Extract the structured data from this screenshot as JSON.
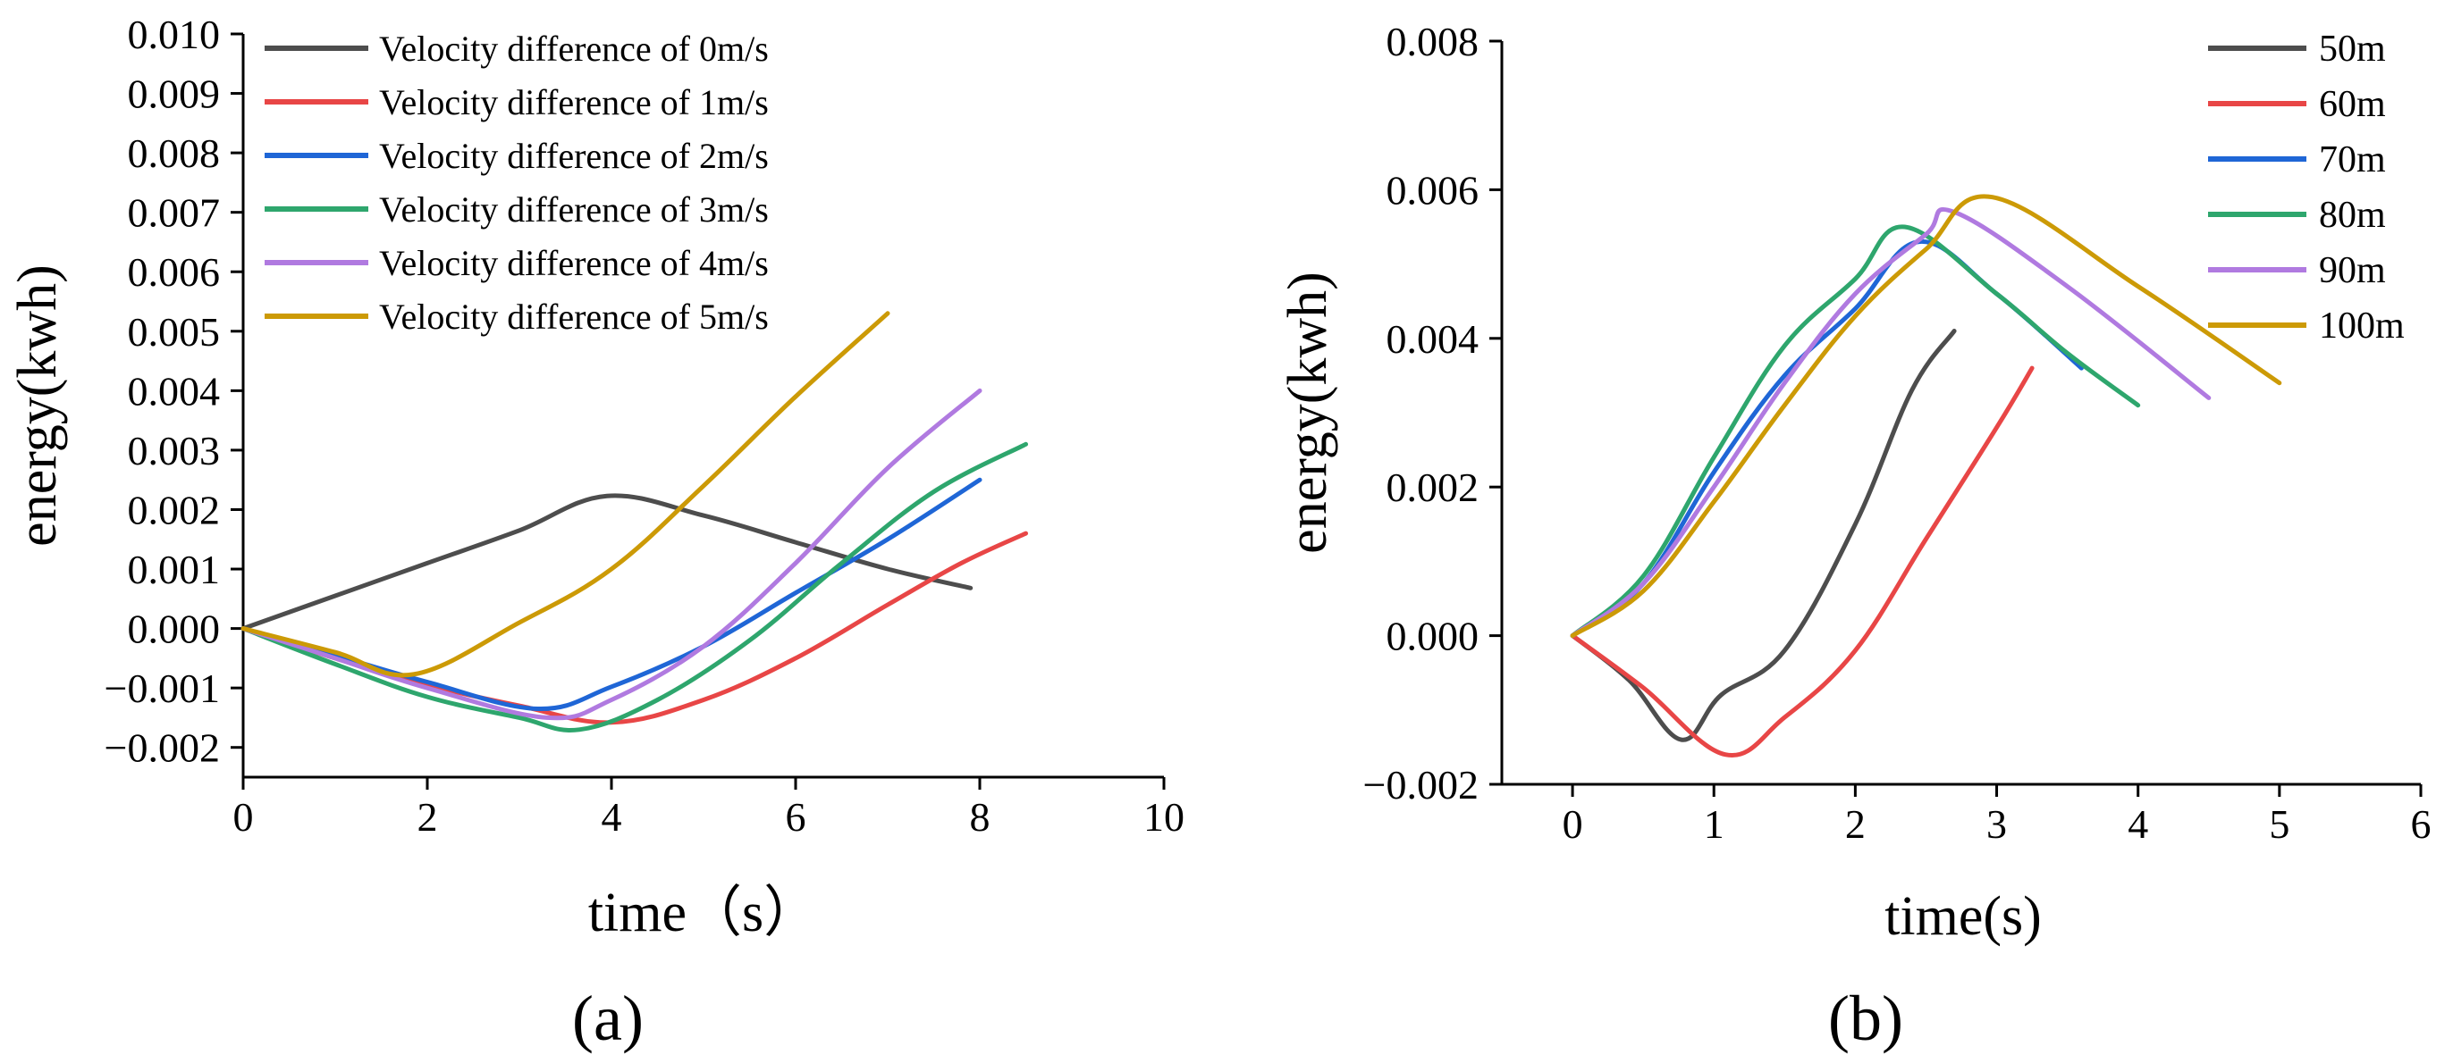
{
  "chart_data": [
    {
      "type": "line",
      "panel_label": "(a)",
      "xlabel": "time（s）",
      "ylabel": "energy(kwh)",
      "xlim": [
        0,
        10
      ],
      "ylim": [
        -0.0025,
        0.01
      ],
      "xticks": [
        0,
        2,
        4,
        6,
        8,
        10
      ],
      "xtick_labels": [
        "0",
        "2",
        "4",
        "6",
        "8",
        "10"
      ],
      "yticks": [
        -0.002,
        -0.001,
        0.0,
        0.001,
        0.002,
        0.003,
        0.004,
        0.005,
        0.006,
        0.007,
        0.008,
        0.009,
        0.01
      ],
      "ytick_labels": [
        "−0.002",
        "−0.001",
        "0.000",
        "0.001",
        "0.002",
        "0.003",
        "0.004",
        "0.005",
        "0.006",
        "0.007",
        "0.008",
        "0.009",
        "0.010"
      ],
      "legend_position": "top-left",
      "series": [
        {
          "name": "Velocity difference of 0m/s",
          "color": "#4d4d4d",
          "points": [
            [
              0,
              0
            ],
            [
              1,
              0.00055
            ],
            [
              2,
              0.0011
            ],
            [
              3,
              0.00165
            ],
            [
              3.95,
              0.00223
            ],
            [
              5,
              0.0019
            ],
            [
              6,
              0.00145
            ],
            [
              7,
              0.001
            ],
            [
              7.9,
              0.00068
            ]
          ]
        },
        {
          "name": "Velocity difference of 1m/s",
          "color": "#e84646",
          "points": [
            [
              0,
              0
            ],
            [
              1,
              -0.0005
            ],
            [
              2,
              -0.00095
            ],
            [
              3,
              -0.0013
            ],
            [
              4,
              -0.00158
            ],
            [
              5,
              -0.0012
            ],
            [
              6,
              -0.0005
            ],
            [
              7,
              0.0004
            ],
            [
              7.8,
              0.0011
            ],
            [
              8.5,
              0.0016
            ]
          ]
        },
        {
          "name": "Velocity difference of 2m/s",
          "color": "#1f66d6",
          "points": [
            [
              0,
              0
            ],
            [
              1,
              -0.00045
            ],
            [
              2,
              -0.0009
            ],
            [
              3.2,
              -0.00135
            ],
            [
              4,
              -0.00098
            ],
            [
              5,
              -0.0003
            ],
            [
              6,
              0.0006
            ],
            [
              7,
              0.0015
            ],
            [
              8,
              0.0025
            ]
          ]
        },
        {
          "name": "Velocity difference of 3m/s",
          "color": "#2ea66d",
          "points": [
            [
              0,
              0
            ],
            [
              1,
              -0.0006
            ],
            [
              2,
              -0.00115
            ],
            [
              3,
              -0.0015
            ],
            [
              3.65,
              -0.0017
            ],
            [
              4.5,
              -0.0012
            ],
            [
              5.5,
              -0.0002
            ],
            [
              6.5,
              0.0011
            ],
            [
              7.5,
              0.0023
            ],
            [
              8.5,
              0.0031
            ]
          ]
        },
        {
          "name": "Velocity difference of 4m/s",
          "color": "#b07ae0",
          "points": [
            [
              0,
              0
            ],
            [
              1,
              -0.0005
            ],
            [
              2,
              -0.001
            ],
            [
              3.3,
              -0.0015
            ],
            [
              4,
              -0.0012
            ],
            [
              5,
              -0.0003
            ],
            [
              6,
              0.0011
            ],
            [
              7,
              0.0027
            ],
            [
              8,
              0.004
            ]
          ]
        },
        {
          "name": "Velocity difference of 5m/s",
          "color": "#cc9a06",
          "points": [
            [
              0,
              0
            ],
            [
              1,
              -0.0004
            ],
            [
              1.85,
              -0.00077
            ],
            [
              3,
              0.0001
            ],
            [
              4,
              0.001
            ],
            [
              5,
              0.0024
            ],
            [
              6,
              0.0039
            ],
            [
              7,
              0.0053
            ]
          ]
        }
      ]
    },
    {
      "type": "line",
      "panel_label": "(b)",
      "xlabel": "time(s)",
      "ylabel": "energy(kwh)",
      "xlim": [
        -0.5,
        6
      ],
      "ylim": [
        -0.002,
        0.008
      ],
      "xticks": [
        0,
        1,
        2,
        3,
        4,
        5,
        6
      ],
      "xtick_labels": [
        "0",
        "1",
        "2",
        "3",
        "4",
        "5",
        "6"
      ],
      "yticks": [
        -0.002,
        0.0,
        0.002,
        0.004,
        0.006,
        0.008
      ],
      "ytick_labels": [
        "−0.002",
        "0.000",
        "0.002",
        "0.004",
        "0.006",
        "0.008"
      ],
      "legend_position": "top-right",
      "series": [
        {
          "name": "50m",
          "color": "#4d4d4d",
          "points": [
            [
              0,
              0
            ],
            [
              0.4,
              -0.0006
            ],
            [
              0.77,
              -0.0014
            ],
            [
              1.05,
              -0.0008
            ],
            [
              1.5,
              -0.0002
            ],
            [
              2,
              0.0015
            ],
            [
              2.4,
              0.0033
            ],
            [
              2.7,
              0.0041
            ]
          ]
        },
        {
          "name": "60m",
          "color": "#e84646",
          "points": [
            [
              0,
              0
            ],
            [
              0.5,
              -0.0007
            ],
            [
              1.08,
              -0.0016
            ],
            [
              1.5,
              -0.0011
            ],
            [
              2,
              -0.0002
            ],
            [
              2.5,
              0.0013
            ],
            [
              3,
              0.0028
            ],
            [
              3.25,
              0.0036
            ]
          ]
        },
        {
          "name": "70m",
          "color": "#1f66d6",
          "points": [
            [
              0,
              0
            ],
            [
              0.5,
              0.0007
            ],
            [
              1,
              0.0022
            ],
            [
              1.5,
              0.0035
            ],
            [
              2,
              0.0044
            ],
            [
              2.45,
              0.0053
            ],
            [
              3,
              0.0046
            ],
            [
              3.6,
              0.0036
            ]
          ]
        },
        {
          "name": "80m",
          "color": "#2ea66d",
          "points": [
            [
              0,
              0
            ],
            [
              0.5,
              0.0008
            ],
            [
              1,
              0.0024
            ],
            [
              1.5,
              0.0039
            ],
            [
              2,
              0.0048
            ],
            [
              2.35,
              0.0055
            ],
            [
              3,
              0.0046
            ],
            [
              3.5,
              0.0038
            ],
            [
              4,
              0.0031
            ]
          ]
        },
        {
          "name": "90m",
          "color": "#b07ae0",
          "points": [
            [
              0,
              0
            ],
            [
              0.5,
              0.0007
            ],
            [
              1,
              0.002
            ],
            [
              1.5,
              0.0034
            ],
            [
              2,
              0.0046
            ],
            [
              2.5,
              0.0054
            ],
            [
              2.7,
              0.0057
            ],
            [
              3.5,
              0.0047
            ],
            [
              4.5,
              0.0032
            ]
          ]
        },
        {
          "name": "100m",
          "color": "#cc9a06",
          "points": [
            [
              0,
              0
            ],
            [
              0.5,
              0.0006
            ],
            [
              1,
              0.0018
            ],
            [
              1.5,
              0.0031
            ],
            [
              2,
              0.0043
            ],
            [
              2.5,
              0.0052
            ],
            [
              2.97,
              0.0059
            ],
            [
              4,
              0.0047
            ],
            [
              5,
              0.0034
            ]
          ]
        }
      ]
    }
  ]
}
